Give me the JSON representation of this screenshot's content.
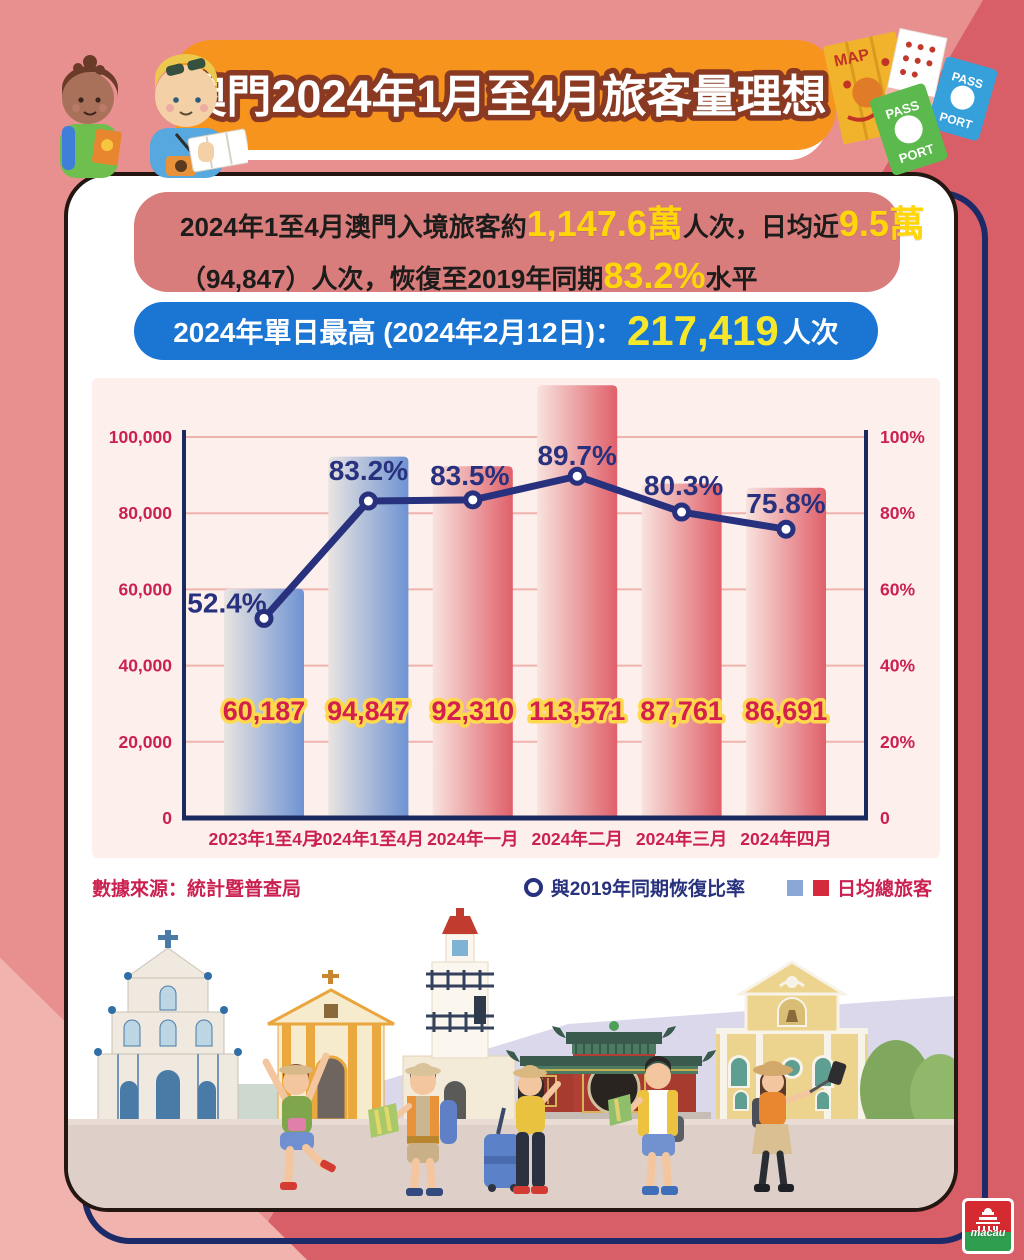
{
  "header": {
    "title": "澳門2024年1月至4月旅客量理想"
  },
  "summary_box": {
    "line1_part1": "2024年1至4月澳門入境旅客約",
    "line1_highlight1": "1,147.6萬",
    "line1_part2": "人次，日均近",
    "line1_highlight2": "9.5萬",
    "line2_part1": "（94,847）人次，恢復至2019年同期",
    "line2_highlight": "83.2%",
    "line2_part2": "水平"
  },
  "peak_box": {
    "label": "2024年單日最高 (2024年2月12日)：",
    "value": "217,419",
    "suffix": "人次"
  },
  "chart_data": {
    "type": "bar+line",
    "title": "",
    "categories": [
      "2023年1至4月",
      "2024年1至4月",
      "2024年一月",
      "2024年二月",
      "2024年三月",
      "2024年四月"
    ],
    "series": [
      {
        "name": "日均總旅客",
        "type": "bar",
        "values": [
          60187,
          94847,
          92310,
          113571,
          87761,
          86691
        ],
        "labels": [
          "60,187",
          "94,847",
          "92,310",
          "113,571",
          "87,761",
          "86,691"
        ],
        "bar_styles": [
          "blue",
          "blue",
          "red",
          "red",
          "red",
          "red"
        ]
      },
      {
        "name": "與2019年同期恢復比率",
        "type": "line",
        "values": [
          52.4,
          83.2,
          83.5,
          89.7,
          80.3,
          75.8
        ],
        "labels": [
          "52.4%",
          "83.2%",
          "83.5%",
          "89.7%",
          "80.3%",
          "75.8%"
        ]
      }
    ],
    "left_axis": {
      "label": "",
      "min": 0,
      "max": 100000,
      "ticks": [
        "0",
        "20,000",
        "40,000",
        "60,000",
        "80,000",
        "100,000"
      ]
    },
    "right_axis": {
      "label": "",
      "min": 0,
      "max": 100,
      "ticks": [
        "0",
        "20%",
        "40%",
        "60%",
        "80%",
        "100%"
      ]
    },
    "grid": true,
    "legend_position": "bottom-right",
    "colors": {
      "axis": "#1b2a5e",
      "grid": "#f0b4ae",
      "tick_text": "#cb2150",
      "bar_blue_from": "#e9e4e1",
      "bar_blue_to": "#6e93d2",
      "bar_red_from": "#f8e3de",
      "bar_red_to": "#e0606a",
      "value_text": "#d4204c",
      "value_outline": "#ffd94d",
      "line": "#28317e",
      "marker_fill": "#ffffff",
      "pct_text": "#28317e",
      "category_text": "#cb2150"
    }
  },
  "footer": {
    "source": "數據來源：統計暨普查局",
    "legend_line": "與2019年同期恢復比率",
    "legend_bar": "日均總旅客"
  },
  "decor": {
    "map_label": "MAP",
    "passport_green_top": "PASS",
    "passport_green_bottom": "PORT",
    "passport_blue_top": "PASS",
    "passport_blue_bottom": "PORT",
    "logo_text": "macau"
  }
}
